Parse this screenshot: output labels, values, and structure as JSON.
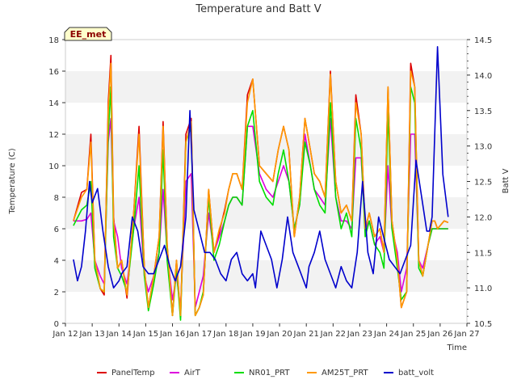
{
  "chart_data": {
    "type": "line",
    "title": "Temperature and Batt V",
    "xlabel": "Time",
    "ylabel": "Temperature (C)",
    "y2label": "Batt V",
    "badge": "EE_met",
    "xlim": [
      12,
      27
    ],
    "ylim": [
      0,
      18
    ],
    "y2lim": [
      10.5,
      14.5
    ],
    "x_ticks": [
      "Jan 12",
      "Jan 13",
      "Jan 14",
      "Jan 15",
      "Jan 16",
      "Jan 17",
      "Jan 18",
      "Jan 19",
      "Jan 20",
      "Jan 21",
      "Jan 22",
      "Jan 23",
      "Jan 24",
      "Jan 25",
      "Jan 26",
      "Jan 27"
    ],
    "y_ticks": [
      0,
      2,
      4,
      6,
      8,
      10,
      12,
      14,
      16,
      18
    ],
    "y2_ticks": [
      "10.5",
      "11.0",
      "11.5",
      "12.0",
      "12.5",
      "13.0",
      "13.5",
      "14.0",
      "14.5"
    ],
    "grid": "horizontal bands",
    "legend_position": "bottom",
    "series": [
      {
        "name": "PanelTemp",
        "color": "#dd0000",
        "axis": "left",
        "x": [
          12.3,
          12.6,
          12.8,
          12.95,
          13.1,
          13.3,
          13.45,
          13.6,
          13.7,
          13.8,
          13.95,
          14.1,
          14.3,
          14.55,
          14.75,
          14.95,
          15.1,
          15.3,
          15.5,
          15.65,
          15.8,
          16.0,
          16.15,
          16.3,
          16.5,
          16.7,
          16.85,
          17.0,
          17.15,
          17.35,
          17.55,
          17.75,
          17.95,
          18.1,
          18.25,
          18.4,
          18.6,
          18.8,
          19.0,
          19.25,
          19.5,
          19.75,
          19.95,
          20.15,
          20.35,
          20.55,
          20.75,
          20.95,
          21.15,
          21.3,
          21.5,
          21.7,
          21.9,
          22.1,
          22.3,
          22.5,
          22.7,
          22.85,
          23.05,
          23.2,
          23.35,
          23.55,
          23.75,
          23.9,
          24.05,
          24.2,
          24.4,
          24.55,
          24.75,
          24.9,
          25.05,
          25.2,
          25.35,
          25.55,
          25.7,
          25.8,
          25.9,
          26.0,
          26.15,
          26.3
        ],
        "y": [
          6.5,
          8.3,
          8.5,
          12.0,
          4.0,
          2.2,
          1.8,
          14.0,
          17.0,
          6.8,
          3.5,
          4.0,
          1.6,
          7.0,
          12.5,
          3.5,
          1.0,
          3.0,
          5.5,
          12.8,
          5.0,
          0.5,
          4.0,
          0.4,
          12.0,
          13.0,
          0.5,
          1.0,
          1.8,
          8.5,
          4.5,
          5.8,
          7.2,
          8.5,
          9.5,
          9.5,
          8.5,
          14.5,
          15.5,
          10.0,
          9.5,
          9.0,
          11.0,
          12.5,
          11.0,
          5.5,
          8.0,
          13.0,
          11.0,
          9.5,
          9.0,
          8.0,
          16.0,
          9.0,
          7.0,
          7.5,
          6.5,
          14.5,
          12.0,
          6.0,
          7.0,
          5.5,
          6.0,
          4.5,
          15.0,
          6.5,
          4.0,
          1.0,
          2.0,
          16.5,
          15.0,
          4.0,
          3.0,
          5.0,
          6.5,
          6.5,
          6.0,
          6.2,
          6.5,
          6.4
        ]
      },
      {
        "name": "AirT",
        "color": "#dd00dd",
        "axis": "left",
        "x": [
          12.3,
          12.6,
          12.8,
          12.95,
          13.1,
          13.3,
          13.45,
          13.6,
          13.7,
          13.8,
          13.95,
          14.1,
          14.3,
          14.55,
          14.75,
          14.95,
          15.1,
          15.3,
          15.5,
          15.65,
          15.8,
          16.0,
          16.15,
          16.3,
          16.5,
          16.7,
          16.85,
          17.0,
          17.15,
          17.35,
          17.55,
          17.75,
          17.95,
          18.1,
          18.25,
          18.4,
          18.6,
          18.8,
          19.0,
          19.25,
          19.5,
          19.75,
          19.95,
          20.15,
          20.35,
          20.55,
          20.75,
          20.95,
          21.15,
          21.3,
          21.5,
          21.7,
          21.9,
          22.1,
          22.3,
          22.5,
          22.7,
          22.85,
          23.05,
          23.2,
          23.35,
          23.55,
          23.75,
          23.9,
          24.05,
          24.2,
          24.4,
          24.55,
          24.75,
          24.9,
          25.05,
          25.2,
          25.35,
          25.55,
          25.7,
          25.8,
          25.9,
          26.0,
          26.15,
          26.3
        ],
        "y": [
          6.5,
          6.5,
          6.6,
          7.0,
          4.0,
          3.0,
          2.5,
          11.5,
          13.0,
          6.5,
          5.5,
          3.5,
          2.5,
          6.0,
          8.0,
          3.0,
          2.0,
          3.0,
          4.5,
          8.5,
          4.5,
          1.5,
          3.0,
          1.0,
          9.0,
          9.5,
          1.0,
          2.0,
          3.0,
          7.0,
          4.5,
          5.5,
          6.5,
          7.5,
          8.0,
          8.0,
          7.5,
          12.5,
          12.5,
          9.5,
          8.5,
          8.0,
          9.0,
          10.0,
          9.0,
          6.0,
          7.5,
          12.0,
          10.0,
          8.5,
          8.0,
          7.5,
          13.0,
          8.0,
          6.5,
          6.5,
          6.0,
          10.5,
          10.5,
          6.0,
          6.5,
          5.0,
          5.5,
          4.5,
          10.0,
          6.0,
          4.5,
          2.0,
          3.5,
          12.0,
          12.0,
          4.0,
          3.5,
          5.0,
          6.0,
          6.0,
          6.0,
          6.0,
          6.0,
          6.0
        ]
      },
      {
        "name": "NR01_PRT",
        "color": "#00dd00",
        "axis": "left",
        "x": [
          12.3,
          12.6,
          12.8,
          12.95,
          13.1,
          13.3,
          13.45,
          13.6,
          13.7,
          13.8,
          13.95,
          14.1,
          14.3,
          14.55,
          14.75,
          14.95,
          15.1,
          15.3,
          15.5,
          15.65,
          15.8,
          16.0,
          16.15,
          16.3,
          16.5,
          16.7,
          16.85,
          17.0,
          17.15,
          17.35,
          17.55,
          17.75,
          17.95,
          18.1,
          18.25,
          18.4,
          18.6,
          18.8,
          19.0,
          19.25,
          19.5,
          19.75,
          19.95,
          20.15,
          20.35,
          20.55,
          20.75,
          20.95,
          21.15,
          21.3,
          21.5,
          21.7,
          21.9,
          22.1,
          22.3,
          22.5,
          22.7,
          22.85,
          23.05,
          23.2,
          23.35,
          23.55,
          23.75,
          23.9,
          24.05,
          24.2,
          24.4,
          24.55,
          24.75,
          24.9,
          25.05,
          25.2,
          25.35,
          25.55,
          25.7,
          25.8,
          25.9,
          26.0,
          26.15,
          26.3
        ],
        "y": [
          6.2,
          7.2,
          7.5,
          9.0,
          3.5,
          2.2,
          2.0,
          12.0,
          15.0,
          5.5,
          3.5,
          3.0,
          2.0,
          6.0,
          10.0,
          3.0,
          0.8,
          2.5,
          4.5,
          11.0,
          4.0,
          0.5,
          3.5,
          0.2,
          11.5,
          12.5,
          0.5,
          1.0,
          2.0,
          8.0,
          4.0,
          5.0,
          6.5,
          7.5,
          8.0,
          8.0,
          7.5,
          12.5,
          13.5,
          9.0,
          8.0,
          7.5,
          9.5,
          11.0,
          9.0,
          6.0,
          7.5,
          11.5,
          10.0,
          8.5,
          7.5,
          7.0,
          14.0,
          8.0,
          6.0,
          7.0,
          5.5,
          13.0,
          11.0,
          5.5,
          6.5,
          5.0,
          4.5,
          3.5,
          13.5,
          6.0,
          3.5,
          1.5,
          2.0,
          15.0,
          14.0,
          3.5,
          3.0,
          5.0,
          6.0,
          6.0,
          6.0,
          6.0,
          6.0,
          6.0
        ]
      },
      {
        "name": "AM25T_PRT",
        "color": "#ff9900",
        "axis": "left",
        "x": [
          12.3,
          12.6,
          12.8,
          12.95,
          13.1,
          13.3,
          13.45,
          13.6,
          13.7,
          13.8,
          13.95,
          14.1,
          14.3,
          14.55,
          14.75,
          14.95,
          15.1,
          15.3,
          15.5,
          15.65,
          15.8,
          16.0,
          16.15,
          16.3,
          16.5,
          16.7,
          16.85,
          17.0,
          17.15,
          17.35,
          17.55,
          17.75,
          17.95,
          18.1,
          18.25,
          18.4,
          18.6,
          18.8,
          19.0,
          19.25,
          19.5,
          19.75,
          19.95,
          20.15,
          20.35,
          20.55,
          20.75,
          20.95,
          21.15,
          21.3,
          21.5,
          21.7,
          21.9,
          22.1,
          22.3,
          22.5,
          22.7,
          22.85,
          23.05,
          23.2,
          23.35,
          23.55,
          23.75,
          23.9,
          24.05,
          24.2,
          24.4,
          24.55,
          24.75,
          24.9,
          25.05,
          25.2,
          25.35,
          25.55,
          25.7,
          25.8,
          25.9,
          26.0,
          26.15,
          26.3
        ],
        "y": [
          6.5,
          8.0,
          8.5,
          11.5,
          4.0,
          2.2,
          2.0,
          13.5,
          16.5,
          6.5,
          3.5,
          4.0,
          1.8,
          7.0,
          12.0,
          3.5,
          1.0,
          3.0,
          5.5,
          12.5,
          5.0,
          0.5,
          4.0,
          0.5,
          11.5,
          12.8,
          0.5,
          1.0,
          1.8,
          8.5,
          4.5,
          6.0,
          7.0,
          8.5,
          9.5,
          9.5,
          8.5,
          14.0,
          15.5,
          10.0,
          9.5,
          9.0,
          11.0,
          12.5,
          11.0,
          5.5,
          8.0,
          13.0,
          11.0,
          9.5,
          9.0,
          8.0,
          15.8,
          9.0,
          7.0,
          7.5,
          6.5,
          14.0,
          12.0,
          6.0,
          7.0,
          5.5,
          6.0,
          4.5,
          15.0,
          6.5,
          4.0,
          1.0,
          2.0,
          16.0,
          15.0,
          4.0,
          3.0,
          5.0,
          6.5,
          6.5,
          6.0,
          6.2,
          6.5,
          6.4
        ]
      },
      {
        "name": "batt_volt",
        "color": "#0000cc",
        "axis": "right",
        "x": [
          12.3,
          12.45,
          12.6,
          12.75,
          12.9,
          13.0,
          13.2,
          13.4,
          13.6,
          13.8,
          14.0,
          14.1,
          14.3,
          14.5,
          14.7,
          14.9,
          15.1,
          15.3,
          15.5,
          15.7,
          15.9,
          16.1,
          16.3,
          16.5,
          16.65,
          16.8,
          17.0,
          17.2,
          17.4,
          17.6,
          17.8,
          18.0,
          18.2,
          18.4,
          18.6,
          18.8,
          19.0,
          19.1,
          19.3,
          19.5,
          19.7,
          19.9,
          20.1,
          20.3,
          20.5,
          20.7,
          20.9,
          21.0,
          21.1,
          21.3,
          21.5,
          21.7,
          21.9,
          22.1,
          22.3,
          22.5,
          22.7,
          22.9,
          23.1,
          23.3,
          23.5,
          23.7,
          23.9,
          24.1,
          24.3,
          24.5,
          24.7,
          24.9,
          25.1,
          25.3,
          25.5,
          25.6,
          25.7,
          25.9,
          26.1,
          26.3
        ],
        "y": [
          11.4,
          11.1,
          11.3,
          11.8,
          12.5,
          12.2,
          12.4,
          11.8,
          11.3,
          11.0,
          11.1,
          11.2,
          11.3,
          12.0,
          11.8,
          11.3,
          11.2,
          11.2,
          11.4,
          11.6,
          11.3,
          11.1,
          11.3,
          12.0,
          13.5,
          12.1,
          11.8,
          11.5,
          11.5,
          11.4,
          11.2,
          11.1,
          11.4,
          11.5,
          11.2,
          11.1,
          11.2,
          11.0,
          11.8,
          11.6,
          11.4,
          11.0,
          11.4,
          12.0,
          11.5,
          11.3,
          11.1,
          11.0,
          11.3,
          11.5,
          11.8,
          11.4,
          11.2,
          11.0,
          11.3,
          11.1,
          11.0,
          11.5,
          12.5,
          11.5,
          11.2,
          12.0,
          11.7,
          11.4,
          11.3,
          11.2,
          11.4,
          11.6,
          12.8,
          12.3,
          11.8,
          11.8,
          12.0,
          14.4,
          12.6,
          12.0
        ]
      }
    ]
  }
}
